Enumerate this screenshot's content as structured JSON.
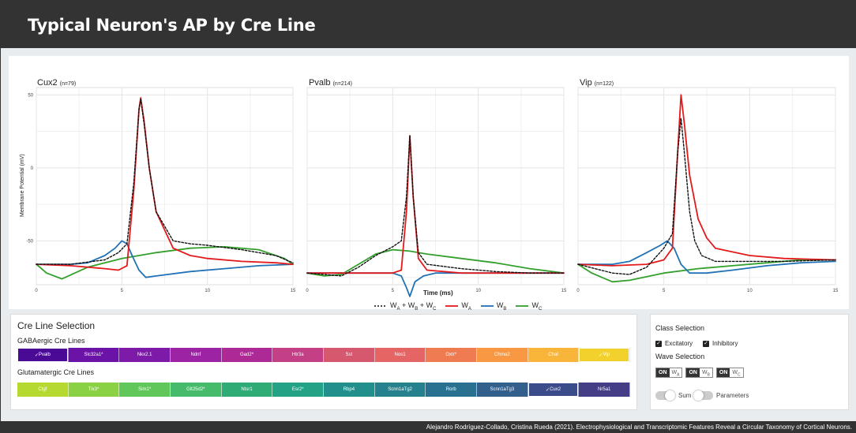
{
  "app": {
    "title": "Typical Neuron's AP by Cre Line"
  },
  "footer": {
    "citation": "Alejandro Rodríguez-Collado, Cristina Rueda (2021). Electrophysiological and Transcriptomic Features Reveal a Circular Taxonomy of Cortical Neurons."
  },
  "colors": {
    "wsum": "#111111",
    "wa": "#e31a1c",
    "wb": "#2171b5",
    "wc": "#33a02c"
  },
  "chart_data": [
    {
      "type": "line",
      "title": "Cux2",
      "subtitle": "(n=79)",
      "xlabel": "Time (ms)",
      "ylabel": "Membrane Potential (mV)",
      "xlim": [
        0,
        15
      ],
      "ylim": [
        -80,
        55
      ],
      "xticks": [
        "0",
        "5",
        "10",
        "15"
      ],
      "yticks": [
        "50",
        "0",
        "-50"
      ],
      "series": [
        {
          "name": "WA+WB+WC",
          "style": "dashed",
          "x": [
            0,
            2,
            4,
            4.8,
            5.3,
            5.7,
            6.0,
            6.1,
            6.3,
            6.6,
            7,
            8,
            9,
            10,
            12,
            14,
            15
          ],
          "y": [
            -66,
            -66,
            -63,
            -58,
            -52,
            -10,
            40,
            47,
            30,
            0,
            -30,
            -50,
            -52,
            -53,
            -56,
            -60,
            -65
          ]
        },
        {
          "name": "WA",
          "style": "solid",
          "x": [
            0,
            2,
            4,
            4.8,
            5.3,
            5.7,
            6.0,
            6.1,
            6.3,
            6.6,
            7,
            8,
            9,
            10,
            12,
            14,
            15
          ],
          "y": [
            -66,
            -67,
            -69,
            -70,
            -67,
            -15,
            40,
            48,
            32,
            0,
            -30,
            -55,
            -60,
            -62,
            -64,
            -65,
            -66
          ]
        },
        {
          "name": "WB",
          "style": "solid",
          "x": [
            0,
            2,
            3,
            4,
            4.6,
            5.0,
            5.3,
            5.6,
            6.0,
            6.4,
            7,
            9,
            11,
            13,
            15
          ],
          "y": [
            -66,
            -66,
            -65,
            -60,
            -55,
            -50,
            -52,
            -60,
            -70,
            -75,
            -74,
            -71,
            -69,
            -67,
            -66
          ]
        },
        {
          "name": "WC",
          "style": "solid",
          "x": [
            0,
            0.6,
            1.5,
            3,
            5,
            7,
            9,
            11,
            13,
            14.5,
            15
          ],
          "y": [
            -66,
            -72,
            -76,
            -68,
            -62,
            -58,
            -55,
            -54,
            -56,
            -62,
            -66
          ]
        }
      ]
    },
    {
      "type": "line",
      "title": "Pvalb",
      "subtitle": "(n=214)",
      "xlabel": "Time (ms)",
      "ylabel": "Membrane Potential (mV)",
      "xlim": [
        0,
        15
      ],
      "ylim": [
        -80,
        55
      ],
      "xticks": [
        "0",
        "5",
        "10",
        "15"
      ],
      "yticks": [],
      "series": [
        {
          "name": "WA+WB+WC",
          "style": "dashed",
          "x": [
            0,
            2,
            3,
            4,
            5,
            5.5,
            5.8,
            6.0,
            6.2,
            6.5,
            7,
            9,
            11,
            13,
            15
          ],
          "y": [
            -72,
            -74,
            -68,
            -60,
            -54,
            -50,
            -20,
            22,
            -20,
            -58,
            -66,
            -69,
            -71,
            -72,
            -72
          ]
        },
        {
          "name": "WA",
          "style": "solid",
          "x": [
            0,
            2,
            4,
            5,
            5.5,
            5.8,
            6.0,
            6.2,
            6.5,
            7,
            9,
            11,
            13,
            15
          ],
          "y": [
            -72,
            -72,
            -72,
            -72,
            -70,
            -30,
            22,
            -20,
            -62,
            -70,
            -72,
            -72,
            -72,
            -72
          ]
        },
        {
          "name": "WB",
          "style": "solid",
          "x": [
            0,
            2,
            4,
            5,
            5.5,
            5.8,
            6.0,
            6.3,
            6.8,
            7.5,
            9,
            11,
            13,
            15
          ],
          "y": [
            -72,
            -72,
            -72,
            -72,
            -74,
            -82,
            -88,
            -78,
            -74,
            -72,
            -72,
            -72,
            -72,
            -72
          ]
        },
        {
          "name": "WC",
          "style": "solid",
          "x": [
            0,
            1,
            2,
            3,
            4,
            5,
            6,
            7,
            9,
            11,
            13,
            15
          ],
          "y": [
            -72,
            -74,
            -73,
            -66,
            -59,
            -56,
            -57,
            -59,
            -62,
            -65,
            -69,
            -72
          ]
        }
      ]
    },
    {
      "type": "line",
      "title": "Vip",
      "subtitle": "(n=122)",
      "xlabel": "Time (ms)",
      "ylabel": "Membrane Potential (mV)",
      "xlim": [
        0,
        15
      ],
      "ylim": [
        -80,
        55
      ],
      "xticks": [
        "0",
        "5",
        "10",
        "15"
      ],
      "yticks": [],
      "series": [
        {
          "name": "WA+WB+WC",
          "style": "dashed",
          "x": [
            0,
            2,
            3,
            4,
            5,
            5.5,
            5.8,
            6.0,
            6.2,
            6.5,
            6.8,
            7.2,
            8,
            10,
            12,
            15
          ],
          "y": [
            -66,
            -72,
            -73,
            -68,
            -55,
            -45,
            10,
            34,
            10,
            -30,
            -50,
            -60,
            -64,
            -64,
            -64,
            -63
          ]
        },
        {
          "name": "WA",
          "style": "solid",
          "x": [
            0,
            2,
            4,
            5,
            5.5,
            5.8,
            6.0,
            6.2,
            6.5,
            7,
            7.5,
            8,
            10,
            12,
            15
          ],
          "y": [
            -66,
            -67,
            -66,
            -63,
            -55,
            10,
            50,
            30,
            -5,
            -35,
            -48,
            -55,
            -60,
            -62,
            -63
          ]
        },
        {
          "name": "WB",
          "style": "solid",
          "x": [
            0,
            2,
            3,
            4,
            4.8,
            5.2,
            5.6,
            6.0,
            6.5,
            7.5,
            9,
            11,
            13,
            15
          ],
          "y": [
            -66,
            -66,
            -64,
            -58,
            -53,
            -50,
            -55,
            -66,
            -72,
            -72,
            -70,
            -67,
            -65,
            -64
          ]
        },
        {
          "name": "WC",
          "style": "solid",
          "x": [
            0,
            0.8,
            2,
            3,
            5,
            7,
            9,
            11,
            13,
            15
          ],
          "y": [
            -66,
            -72,
            -78,
            -77,
            -72,
            -69,
            -67,
            -65,
            -63,
            -63
          ]
        }
      ]
    }
  ],
  "legend": {
    "items": [
      {
        "base": "W",
        "parts": [
          "A",
          "B",
          "C"
        ],
        "style": "dashed",
        "color_key": "wsum"
      },
      {
        "base": "W",
        "sub": "A",
        "style": "solid",
        "color_key": "wa"
      },
      {
        "base": "W",
        "sub": "B",
        "style": "solid",
        "color_key": "wb"
      },
      {
        "base": "W",
        "sub": "C",
        "style": "solid",
        "color_key": "wc"
      }
    ]
  },
  "cre": {
    "title": "Cre Line Selection",
    "gaba_label": "GABAergic Cre Lines",
    "glut_label": "Glutamatergic Cre Lines",
    "gaba": [
      {
        "label": "Pvalb",
        "color": "#4b0a95",
        "selected": true
      },
      {
        "label": "Slc32a1*",
        "color": "#6a13a6",
        "selected": false
      },
      {
        "label": "Nkx2.1",
        "color": "#7e1aa8",
        "selected": false
      },
      {
        "label": "Ndnf",
        "color": "#9b23a4",
        "selected": false
      },
      {
        "label": "Gad2*",
        "color": "#ad2a96",
        "selected": false
      },
      {
        "label": "Htr3a",
        "color": "#c33f86",
        "selected": false
      },
      {
        "label": "Sst",
        "color": "#d6586f",
        "selected": false
      },
      {
        "label": "Nos1",
        "color": "#e46564",
        "selected": false
      },
      {
        "label": "Oxtr*",
        "color": "#ef7b51",
        "selected": false
      },
      {
        "label": "Chrna2",
        "color": "#f89843",
        "selected": false
      },
      {
        "label": "Chat",
        "color": "#f9b43a",
        "selected": false
      },
      {
        "label": "Vip",
        "color": "#f2d12d",
        "selected": true
      }
    ],
    "glut": [
      {
        "label": "Ctgf",
        "color": "#b5d930",
        "selected": false
      },
      {
        "label": "Tlx3*",
        "color": "#8bd144",
        "selected": false
      },
      {
        "label": "Sim1*",
        "color": "#62c75a",
        "selected": false
      },
      {
        "label": "Glt25d2*",
        "color": "#46bb6b",
        "selected": false
      },
      {
        "label": "Ntsr1",
        "color": "#2fab76",
        "selected": false
      },
      {
        "label": "Esr2*",
        "color": "#24a286",
        "selected": false
      },
      {
        "label": "Rbp4",
        "color": "#21908c",
        "selected": false
      },
      {
        "label": "Scnn1aTg2",
        "color": "#26818e",
        "selected": false
      },
      {
        "label": "Rorb",
        "color": "#2a7090",
        "selected": false
      },
      {
        "label": "Scnn1aTg3",
        "color": "#335f8d",
        "selected": false
      },
      {
        "label": "Cux2",
        "color": "#3c4b8a",
        "selected": true
      },
      {
        "label": "Nr5a1",
        "color": "#433e85",
        "selected": false
      }
    ]
  },
  "side": {
    "class_title": "Class Selection",
    "excitatory": "Excitatory",
    "inhibitory": "Inhibitory",
    "wave_title": "Wave Selection",
    "on_label": "ON",
    "wave_base": "W",
    "wave_subs": [
      "A",
      "B",
      "C"
    ],
    "sum_label": "Sum",
    "parameters_label": "Parameters"
  }
}
